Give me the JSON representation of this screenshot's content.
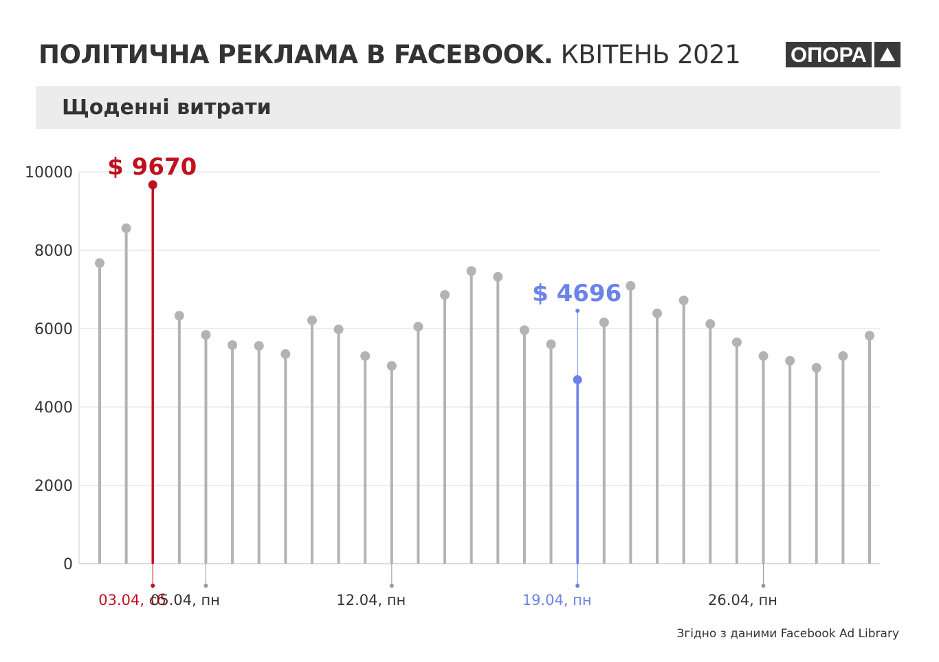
{
  "header": {
    "title_bold": "ПОЛІТИЧНА РЕКЛАМА В FACEBOOK.",
    "title_light": "КВІТЕНЬ 2021",
    "logo": "ОПОРА"
  },
  "subtitle": "Щоденні витрати",
  "source": "Згідно з даними Facebook Ad Library",
  "colors": {
    "stem": "#b3b3b3",
    "max": "#c0111f",
    "highlight": "#6b82e8",
    "grid": "#dddddd"
  },
  "chart_data": {
    "type": "lollipop",
    "title": "Щоденні витрати",
    "xlabel": "",
    "ylabel": "",
    "ylim": [
      0,
      10000
    ],
    "yticks": [
      "0",
      "2000",
      "4000",
      "6000",
      "8000",
      "10000"
    ],
    "x": [
      1,
      2,
      3,
      4,
      5,
      6,
      7,
      8,
      9,
      10,
      11,
      12,
      13,
      14,
      15,
      16,
      17,
      18,
      19,
      20,
      21,
      22,
      23,
      24,
      25,
      26,
      27,
      28,
      29,
      30
    ],
    "values": [
      7670,
      8560,
      9670,
      6330,
      5840,
      5580,
      5560,
      5350,
      6210,
      5980,
      5300,
      5050,
      6050,
      6860,
      7470,
      7320,
      5960,
      5600,
      4696,
      6160,
      7090,
      6390,
      6720,
      6120,
      5650,
      5300,
      5180,
      5000,
      5300,
      5820
    ],
    "xtick_labels": [
      {
        "day": 3,
        "label": "03.04, сб",
        "color": "max"
      },
      {
        "day": 5,
        "label": "05.04, пн",
        "color": ""
      },
      {
        "day": 12,
        "label": "12.04, пн",
        "color": ""
      },
      {
        "day": 19,
        "label": "19.04, пн",
        "color": "highlight"
      },
      {
        "day": 26,
        "label": "26.04, пн",
        "color": ""
      }
    ],
    "annotations": [
      {
        "day": 3,
        "text": "$ 9670",
        "color": "max"
      },
      {
        "day": 19,
        "text": "$ 4696",
        "color": "highlight"
      }
    ],
    "grid": true
  }
}
